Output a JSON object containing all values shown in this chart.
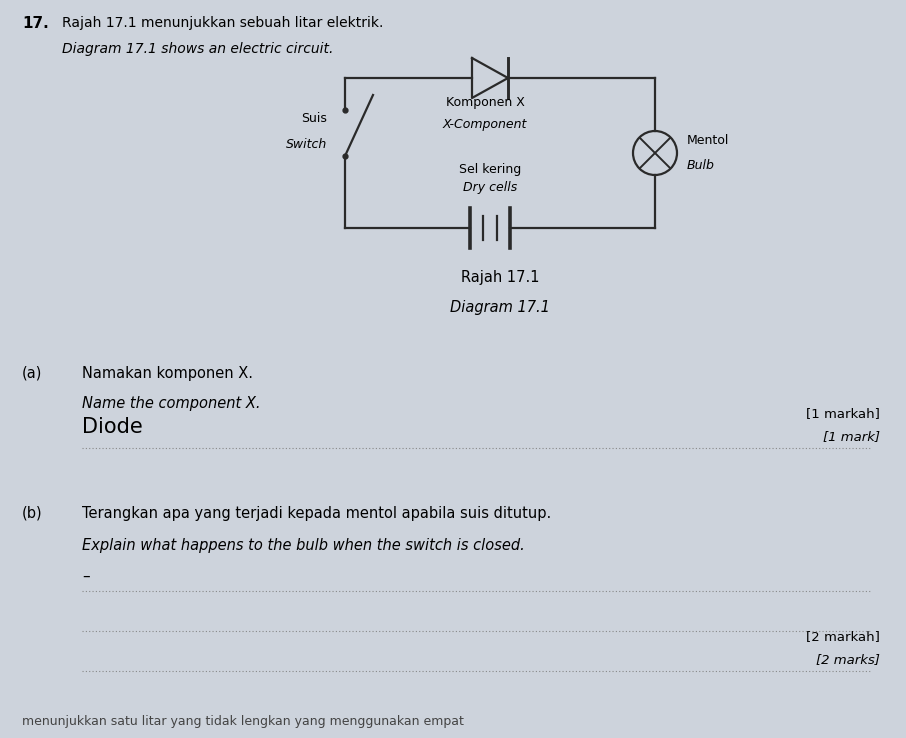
{
  "bg_color": "#cdd3dc",
  "title_number": "17.",
  "title_malay": "Rajah 17.1 menunjukkan sebuah litar elektrik.",
  "title_english": "Diagram 17.1 shows an electric circuit.",
  "circuit_caption_malay": "Rajah 17.1",
  "circuit_caption_english": "Diagram 17.1",
  "switch_label_malay": "Suis",
  "switch_label_english": "Switch",
  "komponen_label_malay": "Komponen X",
  "komponen_label_english": "X-Component",
  "sel_label_malay": "Sel kering",
  "sel_label_english": "Dry cells",
  "mentol_label_malay": "Mentol",
  "mentol_label_english": "Bulb",
  "qa_label": "(a)",
  "qa_malay": "Namakan komponen X.",
  "qa_english": "Name the component X.",
  "qa_answer": "Diode",
  "qa_marks_malay": "[1 markah]",
  "qa_marks_english": "[1 mark]",
  "qb_label": "(b)",
  "qb_malay": "Terangkan apa yang terjadi kepada mentol apabila suis ditutup.",
  "qb_english": "Explain what happens to the bulb when the switch is closed.",
  "qb_answer": "–",
  "qb_marks_malay": "[2 markah]",
  "qb_marks_english": "[2 marks]",
  "bottom_text": "menunjukkan satu litar yang tidak lengkan yang menggunakan empat",
  "line_color": "#2a2a2a",
  "dot_line_color": "#888888"
}
